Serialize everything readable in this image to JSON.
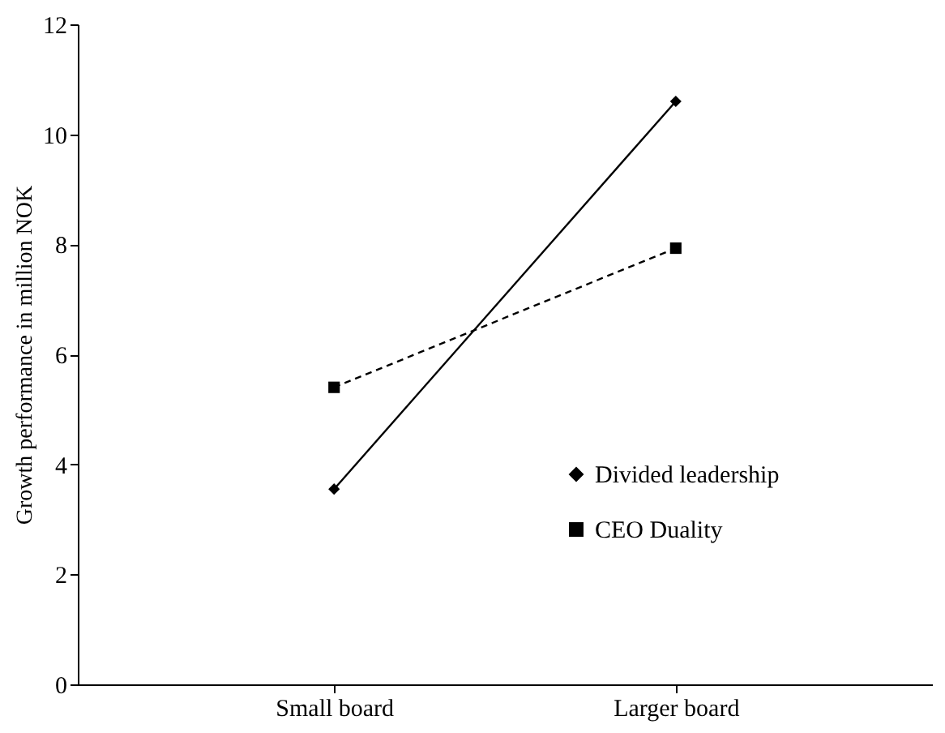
{
  "chart_data": {
    "type": "line",
    "ylabel": "Growth performance in million  NOK",
    "categories": [
      "Small board",
      "Larger board"
    ],
    "series": [
      {
        "name": "Divided leadership",
        "color": "#000000",
        "values": [
          3.55,
          10.6
        ],
        "marker": "diamond",
        "line_style": "solid"
      },
      {
        "name": "CEO Duality",
        "color": "#000000",
        "values": [
          5.4,
          7.93
        ],
        "marker": "square",
        "line_style": "dashed"
      }
    ],
    "ylim": [
      0,
      12
    ],
    "yticks": [
      0,
      2,
      4,
      6,
      8,
      10,
      12
    ],
    "grid": false,
    "legend": "bottom right"
  }
}
